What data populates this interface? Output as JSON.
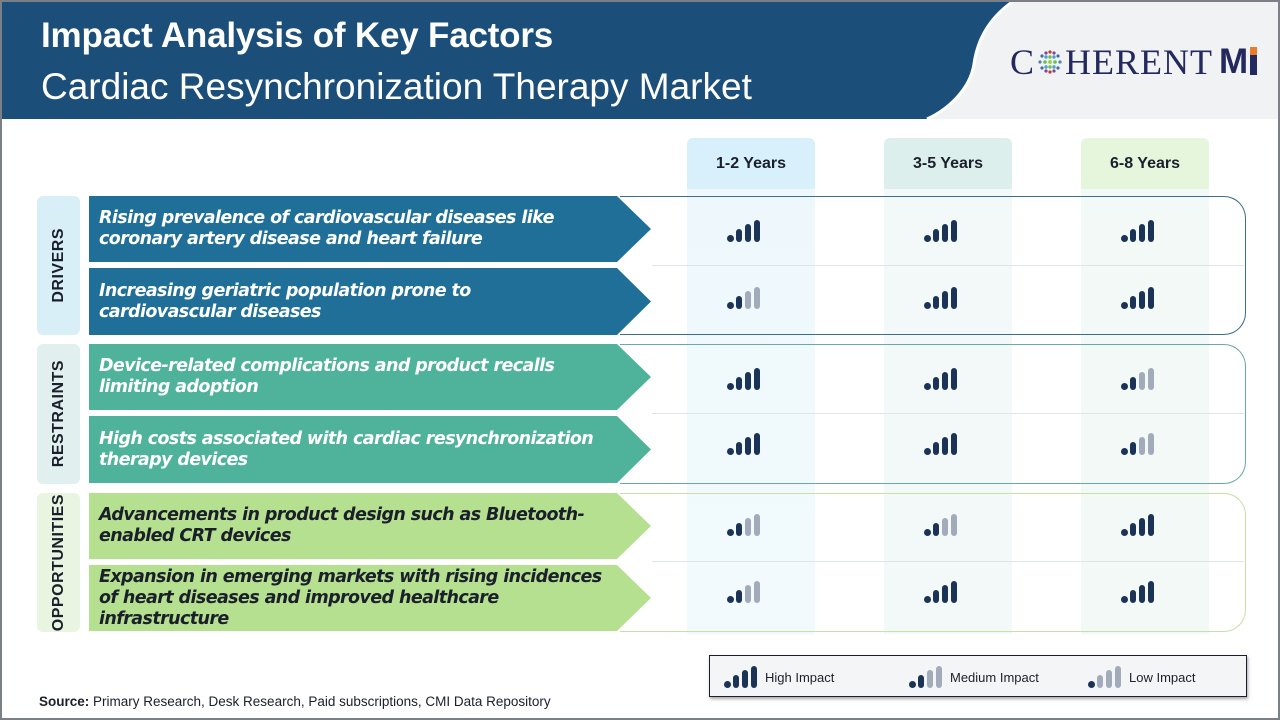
{
  "header": {
    "title_line1": "Impact Analysis of Key Factors",
    "title_line2": "Cardiac Resynchronization Therapy Market",
    "logo_text_c": "C",
    "logo_text_rest": "HERENT",
    "logo_text_mi": "M"
  },
  "columns": [
    {
      "label": "1-2 Years",
      "color": "#d8f0fb"
    },
    {
      "label": "3-5 Years",
      "color": "#dcefec"
    },
    {
      "label": "6-8 Years",
      "color": "#e6f6dd"
    }
  ],
  "categories": [
    {
      "label": "DRIVERS",
      "label_bg": "#d8eff8",
      "arrow_color": "#1f6f98",
      "text_color": "#ffffff",
      "outline_color": "#3e6c8e",
      "factors": [
        {
          "text": "Rising prevalence of cardiovascular diseases like coronary artery disease and heart failure",
          "impacts": [
            "high",
            "high",
            "high"
          ]
        },
        {
          "text": "Increasing geriatric population prone to cardiovascular diseases",
          "impacts": [
            "medium",
            "high",
            "high"
          ]
        }
      ]
    },
    {
      "label": "RESTRAINTS",
      "label_bg": "#e1efef",
      "arrow_color": "#4fb29a",
      "text_color": "#ffffff",
      "outline_color": "#6aa9a5",
      "factors": [
        {
          "text": "Device-related complications and product recalls limiting adoption",
          "impacts": [
            "high",
            "high",
            "medium"
          ]
        },
        {
          "text": "High costs associated with cardiac resynchronization therapy devices",
          "impacts": [
            "high",
            "high",
            "medium"
          ]
        }
      ]
    },
    {
      "label": "OPPORTUNITIES",
      "label_bg": "#e9f5e0",
      "arrow_color": "#b5e08f",
      "text_color": "#1b1f2b",
      "outline_color": "#c9dfa5",
      "factors": [
        {
          "text": "Advancements in product design such as Bluetooth-enabled CRT devices",
          "impacts": [
            "medium",
            "medium",
            "high"
          ]
        },
        {
          "text": "Expansion in emerging markets with rising incidences of heart diseases and improved healthcare infrastructure",
          "impacts": [
            "medium",
            "high",
            "high"
          ]
        }
      ]
    }
  ],
  "legend": {
    "items": [
      {
        "label": "High Impact",
        "level": "high"
      },
      {
        "label": "Medium Impact",
        "level": "medium"
      },
      {
        "label": "Low Impact",
        "level": "low"
      }
    ]
  },
  "source": {
    "label": "Source:",
    "text": " Primary Research, Desk Research, Paid subscriptions, CMI Data Repository"
  },
  "colors": {
    "header_band": "#1b4f7a",
    "bar_active": "#1a3357",
    "bar_inactive": "#a2abba"
  }
}
